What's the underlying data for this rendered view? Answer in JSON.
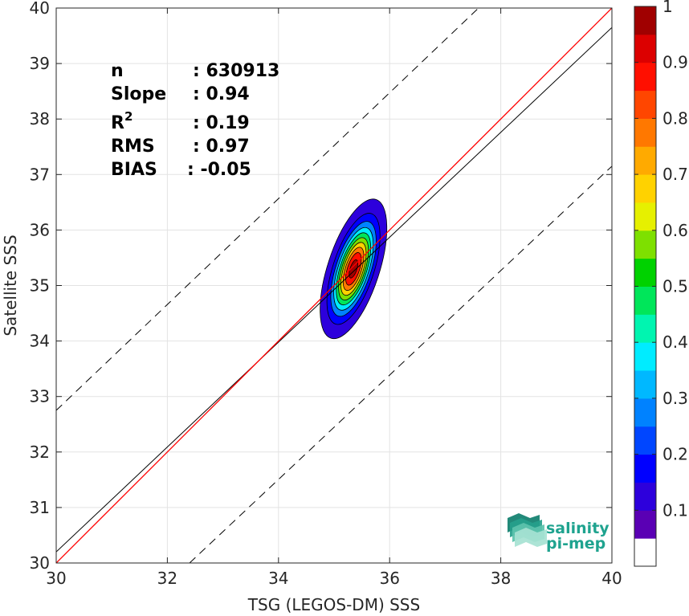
{
  "chart_data": {
    "type": "contour-density-scatter",
    "xlabel": "TSG (LEGOS-DM) SSS",
    "ylabel": "Satellite SSS",
    "xlim": [
      30,
      40
    ],
    "ylim": [
      30,
      40
    ],
    "x_ticks": [
      "30",
      "32",
      "34",
      "36",
      "38",
      "40"
    ],
    "y_ticks": [
      "30",
      "31",
      "32",
      "33",
      "34",
      "35",
      "36",
      "37",
      "38",
      "39",
      "40"
    ],
    "grid": true,
    "stats": [
      {
        "label": "n",
        "sup": "",
        "value": ": 630913"
      },
      {
        "label": "Slope",
        "sup": "",
        "value": ": 0.94"
      },
      {
        "label": "R",
        "sup": "2",
        "value": ": 0.19"
      },
      {
        "label": "RMS",
        "sup": "",
        "value": ": 0.97"
      },
      {
        "label": "BIAS",
        "sup": "",
        "value": ": -0.05"
      }
    ],
    "identity_line": {
      "color": "#ff0000",
      "from": [
        30,
        30
      ],
      "to": [
        40,
        40
      ]
    },
    "regression_line": {
      "color": "#000000",
      "from": [
        30,
        30.2
      ],
      "to": [
        40,
        39.65
      ]
    },
    "dashed_bounds": [
      {
        "from": [
          30,
          32.75
        ],
        "to": [
          37.6,
          40
        ]
      },
      {
        "from": [
          32.4,
          30
        ],
        "to": [
          40,
          37.15
        ]
      }
    ],
    "density_center": [
      35.35,
      35.3
    ],
    "density_levels": [
      0.05,
      0.15,
      0.25,
      0.35,
      0.45,
      0.55,
      0.65,
      0.75,
      0.85,
      0.95
    ],
    "colorbar": {
      "range": [
        0,
        1
      ],
      "ticks": [
        "0.1",
        "0.2",
        "0.3",
        "0.4",
        "0.5",
        "0.6",
        "0.7",
        "0.8",
        "0.9",
        "1"
      ],
      "colors": [
        "#ffffff",
        "#5a00b4",
        "#2d00dc",
        "#0000ff",
        "#0046ff",
        "#0082ff",
        "#00b8ff",
        "#00ecff",
        "#00f5b0",
        "#00e65a",
        "#00d200",
        "#7ee000",
        "#e6f000",
        "#ffd200",
        "#ffaa00",
        "#ff7800",
        "#ff4600",
        "#ff0f00",
        "#dc0000",
        "#a00000"
      ]
    },
    "logo": {
      "line1": "salinity",
      "line2": "pi-mep"
    }
  }
}
